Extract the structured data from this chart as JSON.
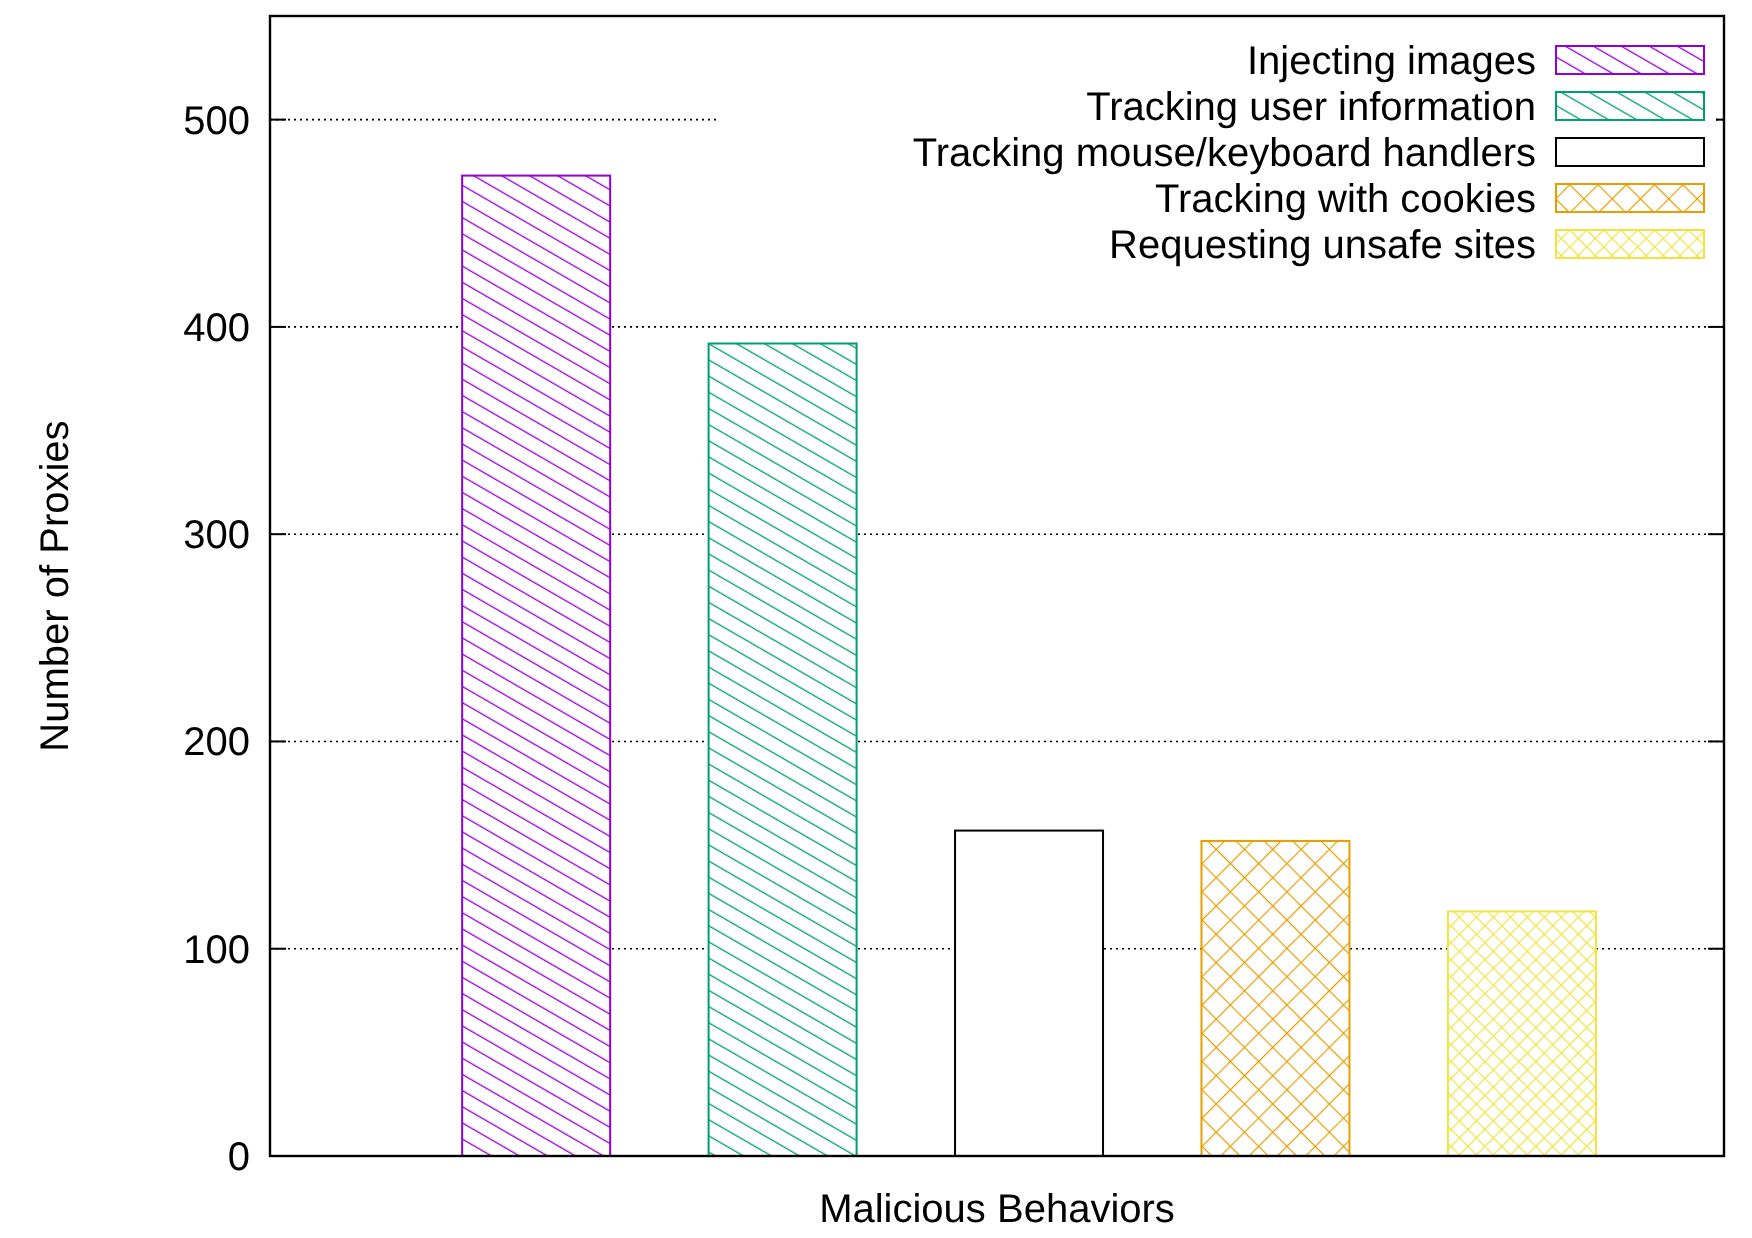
{
  "chart_data": {
    "type": "bar",
    "xlabel": "Malicious Behaviors",
    "ylabel": "Number of Proxies",
    "categories": [
      null,
      null,
      null,
      null,
      null
    ],
    "series": [
      {
        "name": "Injecting images",
        "color": "#9400d3",
        "values": [
          473,
          null,
          null,
          null,
          null
        ]
      },
      {
        "name": "Tracking user information",
        "color": "#009e73",
        "values": [
          null,
          392,
          null,
          null,
          null
        ]
      },
      {
        "name": "Tracking mouse/keyboard handlers",
        "color": "#000000",
        "values": [
          null,
          null,
          157,
          null,
          null
        ]
      },
      {
        "name": "Tracking with cookies",
        "color": "#e69f00",
        "values": [
          null,
          null,
          null,
          152,
          null
        ]
      },
      {
        "name": "Requesting unsafe sites",
        "color": "#f0e442",
        "values": [
          null,
          null,
          null,
          null,
          118
        ]
      }
    ],
    "ylim": [
      0,
      550
    ],
    "yticks": [
      0,
      100,
      200,
      300,
      400,
      500
    ],
    "grid": "y",
    "legend": "top right"
  }
}
